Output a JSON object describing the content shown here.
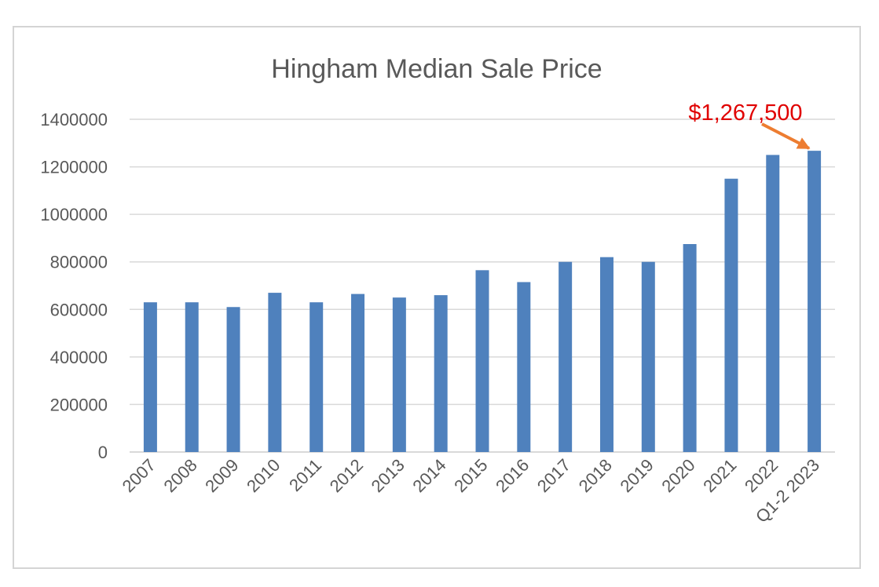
{
  "chart_data": {
    "type": "bar",
    "title": "Hingham Median Sale Price",
    "xlabel": "",
    "ylabel": "",
    "categories": [
      "2007",
      "2008",
      "2009",
      "2010",
      "2011",
      "2012",
      "2013",
      "2014",
      "2015",
      "2016",
      "2017",
      "2018",
      "2019",
      "2020",
      "2021",
      "2022",
      "Q1-2 2023"
    ],
    "values": [
      630000,
      630000,
      610000,
      670000,
      630000,
      665000,
      650000,
      660000,
      765000,
      715000,
      800000,
      820000,
      800000,
      875000,
      1150000,
      1250000,
      1267500
    ],
    "ylim": [
      0,
      1400000
    ],
    "yticks": [
      0,
      200000,
      400000,
      600000,
      800000,
      1000000,
      1200000,
      1400000
    ],
    "ytick_labels": [
      "0",
      "200000",
      "400000",
      "600000",
      "800000",
      "1000000",
      "1200000",
      "1400000"
    ],
    "grid": "horizontal",
    "legend": "none",
    "annotation": {
      "text": "$1,267,500",
      "target_category": "Q1-2 2023",
      "color": "#e00000",
      "arrow_color": "#ed7d31"
    },
    "colors": {
      "bar": "#4f81bd",
      "grid": "#d9d9d9",
      "text": "#595959"
    }
  }
}
